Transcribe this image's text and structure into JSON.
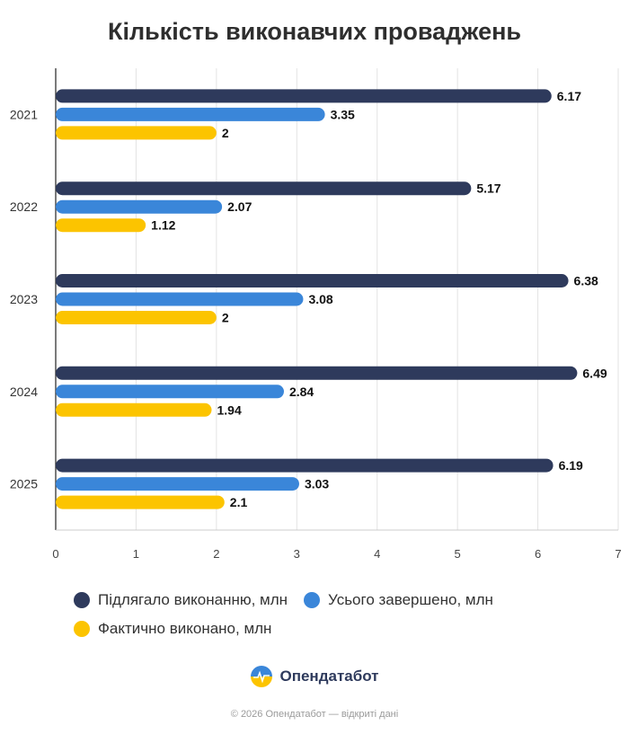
{
  "title": "Кількість виконавчих проваджень",
  "chart_data": {
    "type": "bar",
    "orientation": "horizontal",
    "title": "Кількість виконавчих проваджень",
    "categories": [
      "2021",
      "2022",
      "2023",
      "2024",
      "2025"
    ],
    "series": [
      {
        "name": "Підлягало виконанню, млн",
        "color": "#2e3a5c",
        "values": [
          6.17,
          5.17,
          6.38,
          6.49,
          6.19
        ],
        "labels": [
          "6.17",
          "5.17",
          "6.38",
          "6.49",
          "6.19"
        ]
      },
      {
        "name": "Усього завершено, млн",
        "color": "#3a86d9",
        "values": [
          3.35,
          2.07,
          3.08,
          2.84,
          3.03
        ],
        "labels": [
          "3.35",
          "2.07",
          "3.08",
          "2.84",
          "3.03"
        ]
      },
      {
        "name": "Фактично виконано, млн",
        "color": "#fcc400",
        "values": [
          2,
          1.12,
          2,
          1.94,
          2.1
        ],
        "labels": [
          "2",
          "1.12",
          "2",
          "1.94",
          "2.1"
        ]
      }
    ],
    "xlim": [
      0,
      7
    ],
    "ticks": [
      "0",
      "1",
      "2",
      "3",
      "4",
      "5",
      "6",
      "7"
    ],
    "grid": true,
    "legend_position": "bottom"
  },
  "brand": {
    "name": "Опендатабот",
    "icon": "opendatabot-logo-icon"
  },
  "footer": "© 2026 Опендатабот — відкриті дані"
}
